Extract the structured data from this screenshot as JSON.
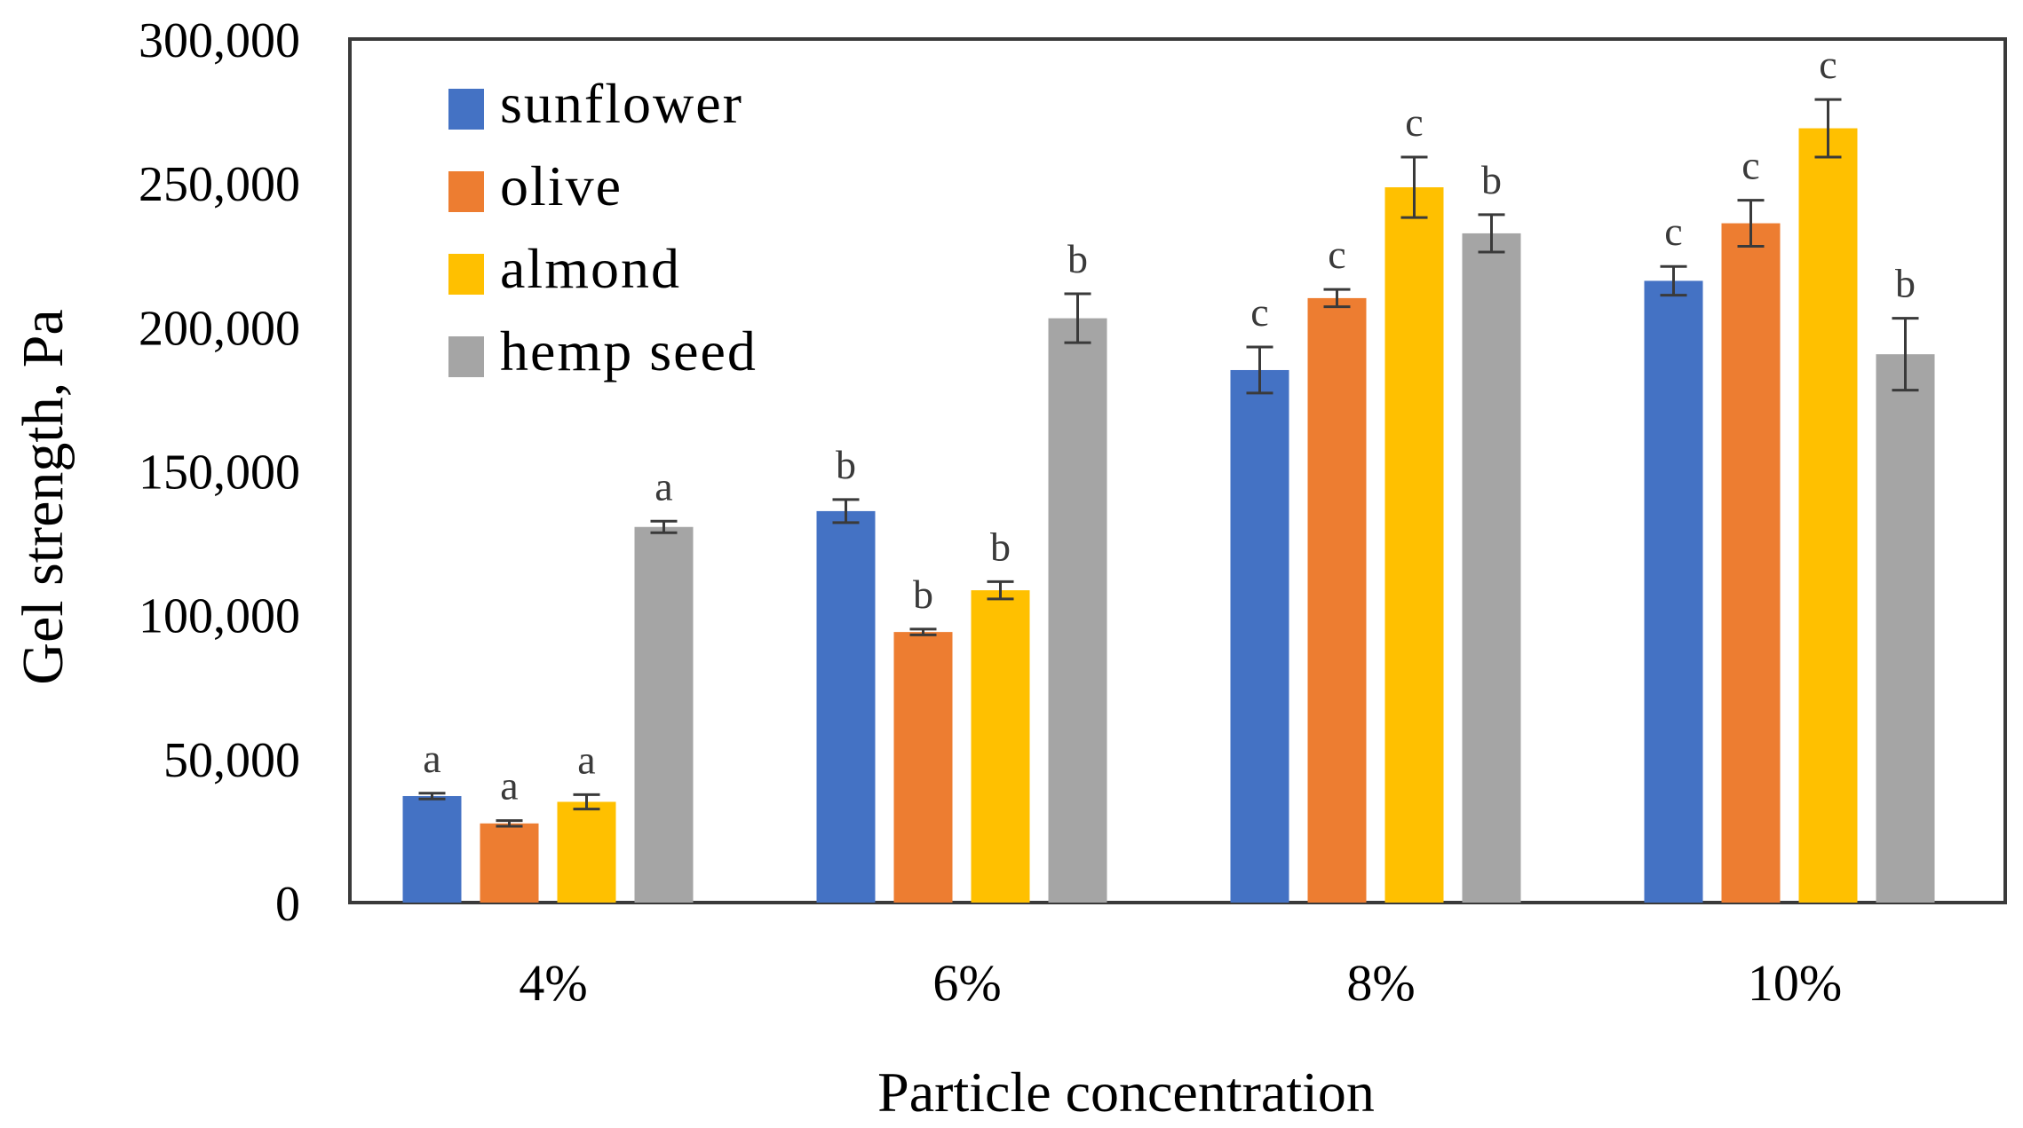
{
  "chart_data": {
    "type": "bar",
    "xlabel": "Particle concentration",
    "ylabel": "Gel strength, Pa",
    "categories": [
      "4%",
      "6%",
      "8%",
      "10%"
    ],
    "ylim": [
      0,
      300000
    ],
    "yticks": [
      0,
      50000,
      100000,
      150000,
      200000,
      250000,
      300000
    ],
    "ytick_labels": [
      "0",
      "50,000",
      "100,000",
      "150,000",
      "200,000",
      "250,000",
      "300,000"
    ],
    "grid": false,
    "legend_position": "top-left",
    "series": [
      {
        "name": "sunflower",
        "color": "#4472C4",
        "values": [
          37000,
          136000,
          185000,
          216000
        ],
        "errors": [
          1000,
          4000,
          8000,
          5000
        ],
        "letters": [
          "a",
          "b",
          "c",
          "c"
        ]
      },
      {
        "name": "olive",
        "color": "#ED7D31",
        "values": [
          27500,
          94000,
          210000,
          236000
        ],
        "errors": [
          1000,
          1000,
          3000,
          8000
        ],
        "letters": [
          "a",
          "b",
          "c",
          "c"
        ]
      },
      {
        "name": "almond",
        "color": "#FFC000",
        "values": [
          35000,
          108500,
          248500,
          269000
        ],
        "errors": [
          2500,
          3000,
          10500,
          10000
        ],
        "letters": [
          "a",
          "b",
          "c",
          "c"
        ]
      },
      {
        "name": "hemp seed",
        "color": "#A5A5A5",
        "values": [
          130500,
          203000,
          232500,
          190500
        ],
        "errors": [
          2000,
          8500,
          6500,
          12500
        ],
        "letters": [
          "a",
          "b",
          "b",
          "b"
        ]
      }
    ]
  }
}
